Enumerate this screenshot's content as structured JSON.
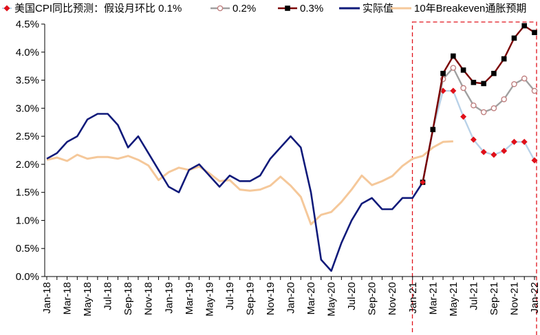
{
  "chart_data": {
    "type": "line",
    "title": "",
    "xlabel": "",
    "ylabel": "",
    "ylim": [
      0,
      4.5
    ],
    "yticks": [
      "0.0%",
      "0.5%",
      "1.0%",
      "1.5%",
      "2.0%",
      "2.5%",
      "3.0%",
      "3.5%",
      "4.0%",
      "4.5%"
    ],
    "grid": false,
    "legend_position": "top",
    "months": [
      "Jan-18",
      "Feb-18",
      "Mar-18",
      "Apr-18",
      "May-18",
      "Jun-18",
      "Jul-18",
      "Aug-18",
      "Sep-18",
      "Oct-18",
      "Nov-18",
      "Dec-18",
      "Jan-19",
      "Feb-19",
      "Mar-19",
      "Apr-19",
      "May-19",
      "Jun-19",
      "Jul-19",
      "Aug-19",
      "Sep-19",
      "Oct-19",
      "Nov-19",
      "Dec-19",
      "Jan-20",
      "Feb-20",
      "Mar-20",
      "Apr-20",
      "May-20",
      "Jun-20",
      "Jul-20",
      "Aug-20",
      "Sep-20",
      "Oct-20",
      "Nov-20",
      "Dec-20",
      "Jan-21",
      "Feb-21",
      "Mar-21",
      "Apr-21",
      "May-21",
      "Jun-21",
      "Jul-21",
      "Aug-21",
      "Sep-21",
      "Oct-21",
      "Nov-21",
      "Dec-21",
      "Jan-22"
    ],
    "tick_labels": [
      "Jan-18",
      "Mar-18",
      "May-18",
      "Jul-18",
      "Sep-18",
      "Nov-18",
      "Jan-19",
      "Mar-19",
      "May-19",
      "Jul-19",
      "Sep-19",
      "Nov-19",
      "Jan-20",
      "Mar-20",
      "May-20",
      "Jul-20",
      "Sep-20",
      "Nov-20",
      "Jan-21",
      "Mar-21",
      "May-21",
      "Jul-21",
      "Sep-21",
      "Nov-21",
      "Jan-22"
    ],
    "highlight_box": {
      "from": "Feb-21",
      "to": "Jan-22",
      "color": "#e0101a"
    },
    "series": [
      {
        "name": "美国CPI同比预测：假设月环比 0.1%",
        "color": "#e0101a",
        "line_color": "#b8d1e8",
        "marker": "diamond",
        "start": "Feb-21",
        "values": [
          1.68,
          2.62,
          3.31,
          3.31,
          2.85,
          2.44,
          2.22,
          2.17,
          2.24,
          2.4,
          2.4,
          2.07
        ]
      },
      {
        "name": "0.2%",
        "color": "#a0a0a0",
        "line_color": "#a0a0a0",
        "marker": "circle",
        "marker_color": "#c08080",
        "start": "Feb-21",
        "values": [
          1.68,
          2.62,
          3.52,
          3.72,
          3.36,
          3.05,
          2.93,
          3.0,
          3.16,
          3.43,
          3.53,
          3.31
        ]
      },
      {
        "name": "0.3%",
        "color": "#7a0000",
        "line_color": "#7a0000",
        "marker": "square",
        "marker_color": "#000000",
        "start": "Feb-21",
        "values": [
          1.68,
          2.62,
          3.62,
          3.93,
          3.68,
          3.46,
          3.44,
          3.62,
          3.88,
          4.25,
          4.47,
          4.35
        ]
      },
      {
        "name": "实际值",
        "color": "#0f1a7a",
        "line_color": "#0f1a7a",
        "marker": "none",
        "start": "Jan-18",
        "values": [
          2.1,
          2.2,
          2.4,
          2.5,
          2.8,
          2.9,
          2.9,
          2.7,
          2.3,
          2.5,
          2.2,
          1.9,
          1.6,
          1.5,
          1.9,
          2.0,
          1.8,
          1.6,
          1.8,
          1.7,
          1.7,
          1.8,
          2.1,
          2.3,
          2.5,
          2.3,
          1.5,
          0.3,
          0.1,
          0.6,
          1.0,
          1.3,
          1.4,
          1.2,
          1.2,
          1.4,
          1.4,
          1.68,
          2.62
        ]
      },
      {
        "name": "10年Breakeven通胀预期",
        "color": "#f5c89a",
        "line_color": "#f5c89a",
        "marker": "none",
        "start": "Jan-18",
        "values": [
          2.08,
          2.12,
          2.06,
          2.17,
          2.1,
          2.13,
          2.13,
          2.1,
          2.15,
          2.08,
          1.98,
          1.72,
          1.86,
          1.94,
          1.9,
          1.96,
          1.84,
          1.7,
          1.72,
          1.55,
          1.53,
          1.55,
          1.62,
          1.78,
          1.62,
          1.42,
          0.93,
          1.1,
          1.15,
          1.33,
          1.55,
          1.8,
          1.63,
          1.7,
          1.79,
          1.97,
          2.1,
          2.15,
          2.3,
          2.4,
          2.41
        ]
      }
    ]
  }
}
